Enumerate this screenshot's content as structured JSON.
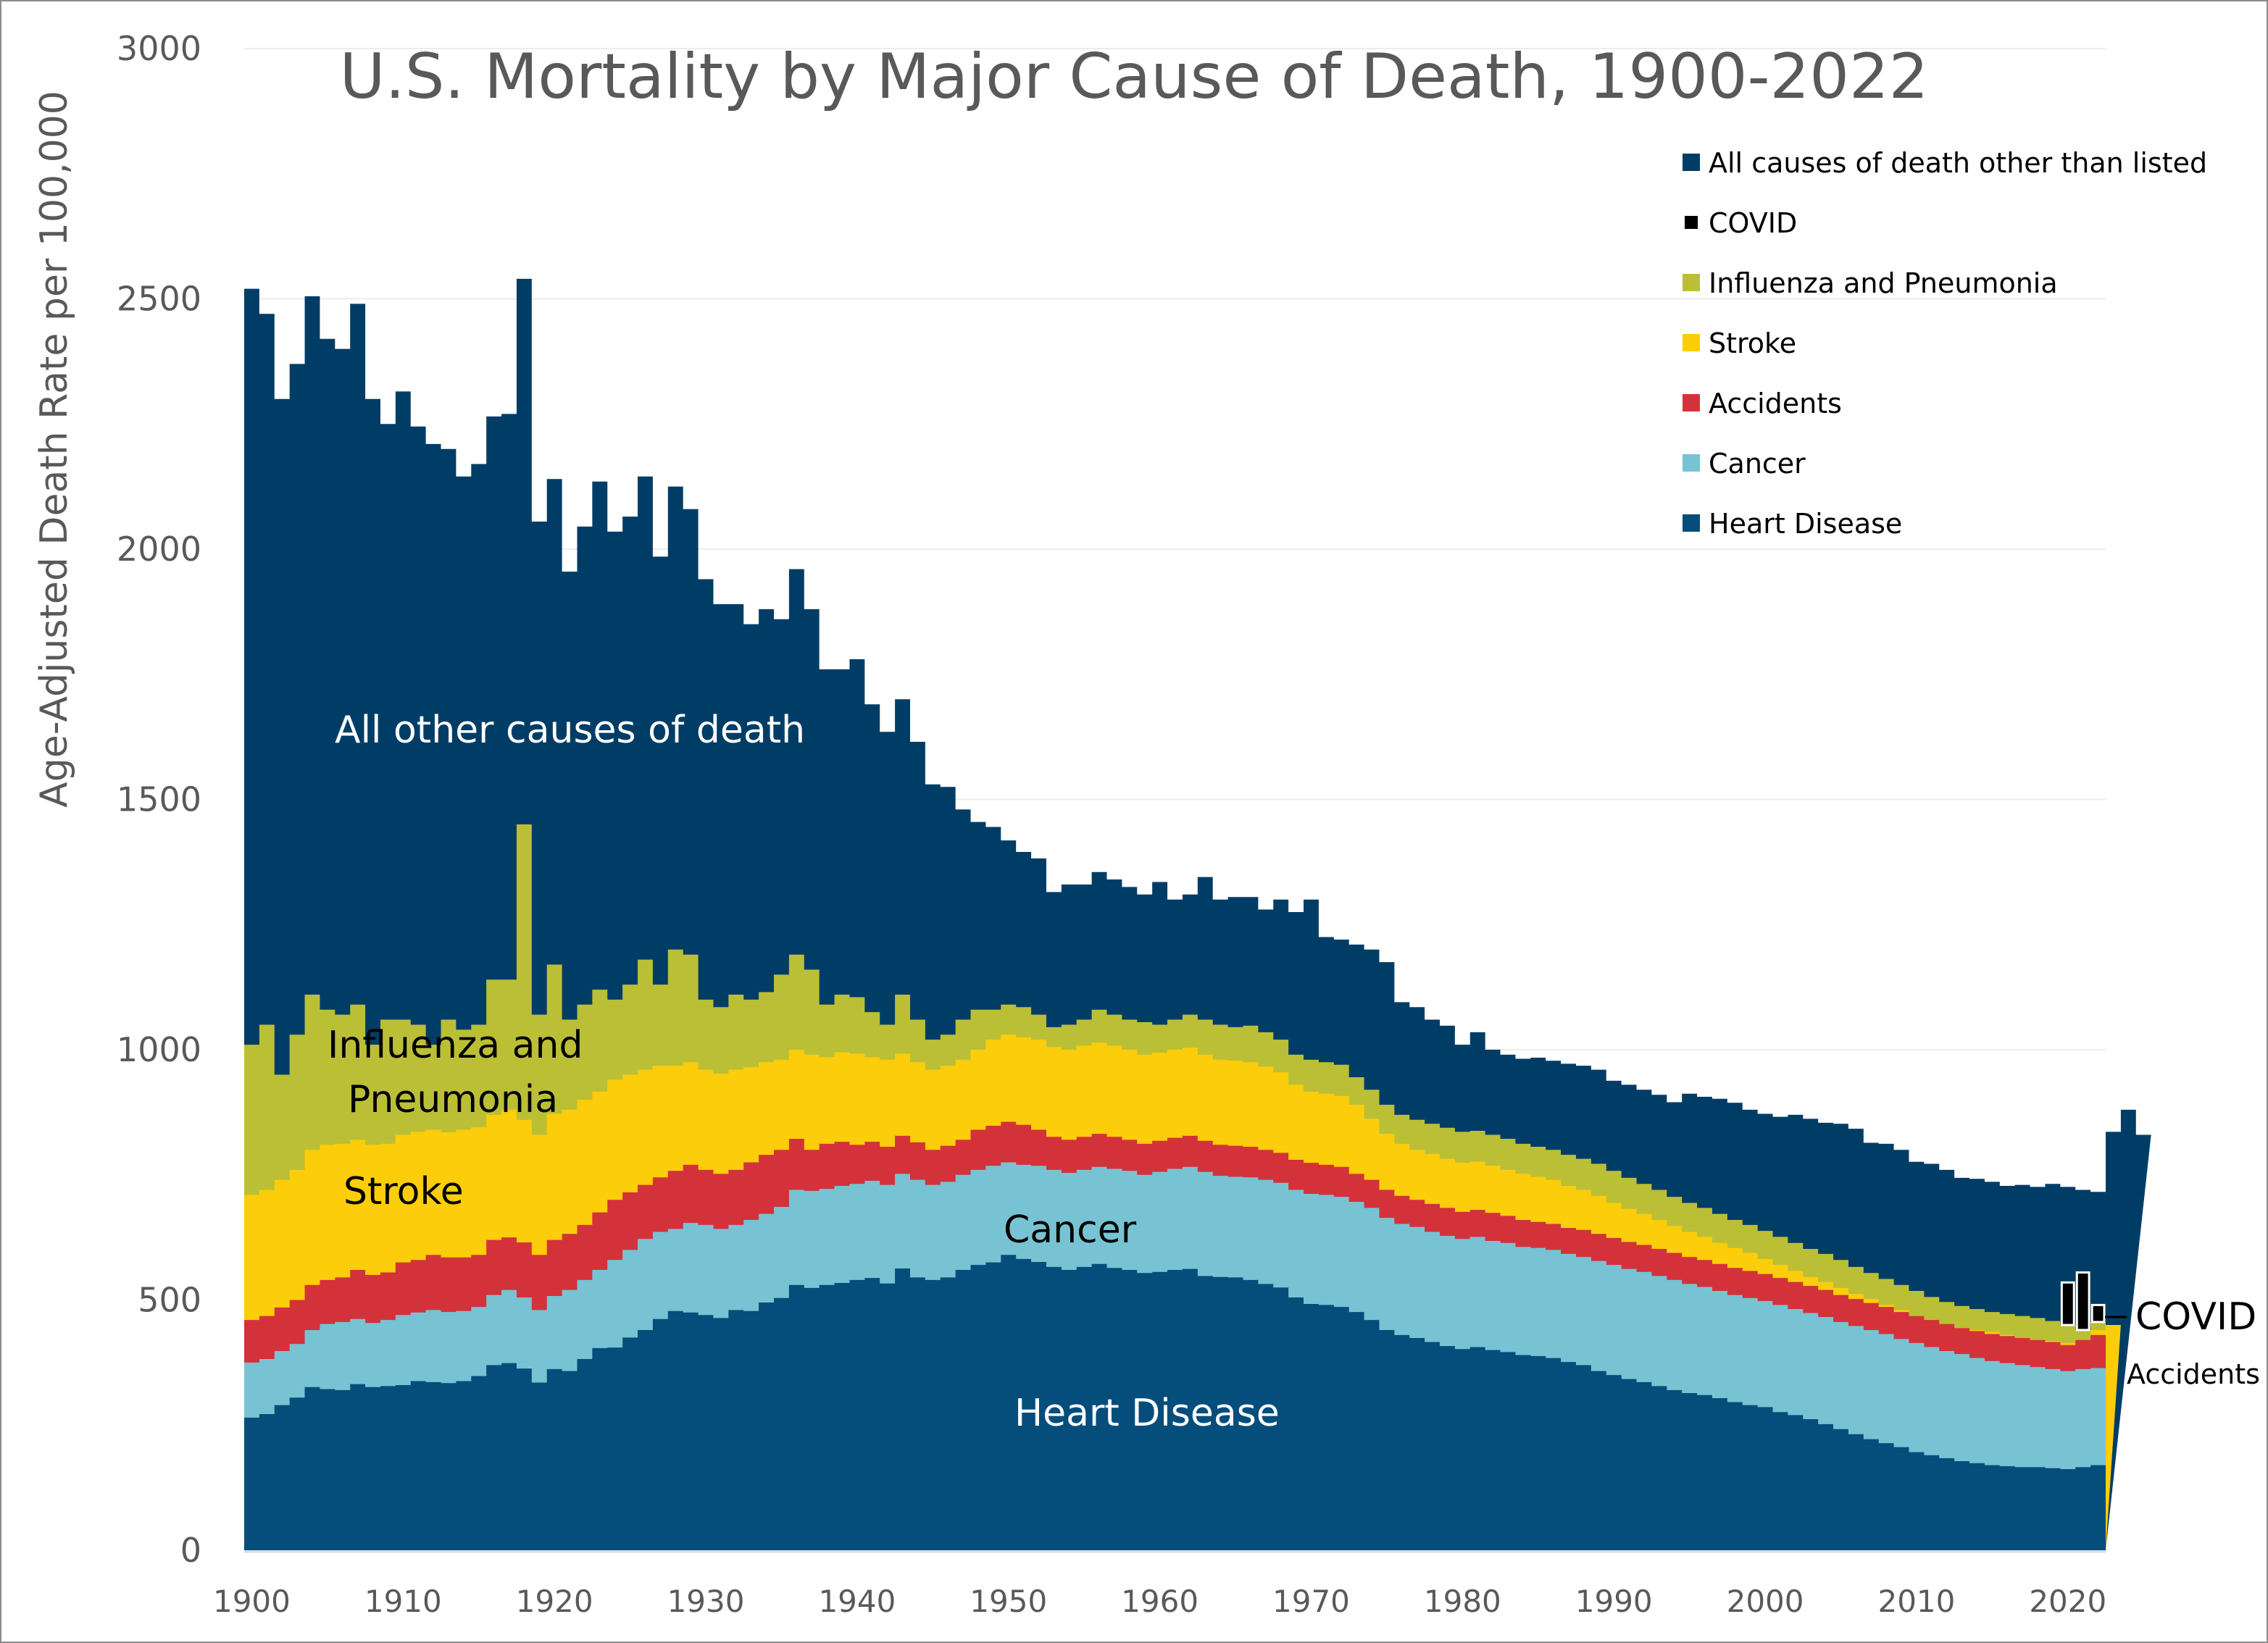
{
  "chart_data": {
    "type": "area",
    "stacked": true,
    "step": true,
    "title": "U.S. Mortality by Major Cause of Death, 1900-2022",
    "xlabel": "",
    "ylabel": "Age-Adjusted Death Rate per 100,000",
    "xlim": [
      1900,
      2022
    ],
    "ylim": [
      0,
      3000
    ],
    "yticks": [
      0,
      500,
      1000,
      1500,
      2000,
      2500,
      3000
    ],
    "xticks": [
      1900,
      1910,
      1920,
      1930,
      1940,
      1950,
      1960,
      1970,
      1980,
      1990,
      2000,
      2010,
      2020
    ],
    "grid": "horizontal",
    "legend_position": "top-right",
    "legend": [
      {
        "name": "All causes of death other than listed",
        "color": "#003d66"
      },
      {
        "name": "COVID",
        "color": "#000000"
      },
      {
        "name": "Influenza and Pneumonia",
        "color": "#bbbf36"
      },
      {
        "name": "Stroke",
        "color": "#fccd0a"
      },
      {
        "name": "Accidents",
        "color": "#d3323a"
      },
      {
        "name": "Cancer",
        "color": "#77c3d3"
      },
      {
        "name": "Heart Disease",
        "color": "#054d7b"
      }
    ],
    "annotations": {
      "other": "All other causes of death",
      "flu": "Influenza and",
      "flu2": "Pneumonia",
      "stroke": "Stroke",
      "cancer": "Cancer",
      "heart": "Heart Disease",
      "covid": "COVID",
      "accidents": "Accidents"
    },
    "years_start": 1900,
    "series_order": [
      "Heart Disease",
      "Cancer",
      "Accidents",
      "Stroke",
      "Influenza and Pneumonia",
      "COVID",
      "All causes of death other than listed"
    ],
    "colors": {
      "Heart Disease": "#054d7b",
      "Cancer": "#77c3d3",
      "Accidents": "#d3323a",
      "Stroke": "#fccd0a",
      "Influenza and Pneumonia": "#bbbf36",
      "COVID": "#000000",
      "All causes of death other than listed": "#003d66"
    },
    "cumulative_tops": {
      "Heart Disease": [
        265,
        272,
        290,
        305,
        326,
        322,
        320,
        332,
        326,
        328,
        330,
        338,
        336,
        334,
        338,
        348,
        370,
        374,
        363,
        335,
        362,
        358,
        382,
        404,
        405,
        425,
        440,
        462,
        478,
        475,
        470,
        464,
        480,
        478,
        495,
        504,
        530,
        524,
        530,
        534,
        540,
        544,
        533,
        563,
        545,
        540,
        545,
        560,
        570,
        575,
        590,
        582,
        576,
        566,
        560,
        566,
        572,
        564,
        560,
        554,
        556,
        560,
        562,
        548,
        546,
        545,
        540,
        532,
        525,
        505,
        492,
        490,
        486,
        476,
        460,
        440,
        430,
        424,
        416,
        408,
        402,
        406,
        400,
        396,
        390,
        388,
        384,
        376,
        370,
        358,
        350,
        342,
        336,
        328,
        320,
        314,
        310,
        304,
        296,
        290,
        286,
        276,
        270,
        262,
        252,
        242,
        232,
        222,
        214,
        206,
        196,
        190,
        184,
        178,
        174,
        170,
        168,
        166,
        166,
        164,
        162,
        166,
        170
      ],
      "Cancer": [
        375,
        382,
        398,
        412,
        440,
        452,
        456,
        462,
        454,
        460,
        470,
        475,
        480,
        476,
        478,
        486,
        510,
        520,
        505,
        480,
        508,
        520,
        540,
        560,
        580,
        600,
        622,
        636,
        642,
        654,
        650,
        642,
        650,
        660,
        672,
        686,
        720,
        718,
        722,
        728,
        732,
        738,
        730,
        752,
        740,
        730,
        736,
        750,
        760,
        768,
        775,
        770,
        768,
        760,
        754,
        760,
        766,
        762,
        758,
        750,
        756,
        762,
        766,
        756,
        748,
        746,
        745,
        740,
        734,
        720,
        712,
        710,
        706,
        696,
        684,
        664,
        652,
        646,
        636,
        628,
        622,
        626,
        618,
        614,
        606,
        604,
        600,
        592,
        586,
        578,
        570,
        562,
        556,
        548,
        540,
        532,
        526,
        518,
        510,
        504,
        498,
        490,
        482,
        474,
        466,
        456,
        448,
        440,
        432,
        422,
        414,
        406,
        398,
        392,
        384,
        378,
        374,
        370,
        366,
        362,
        358,
        362,
        364
      ],
      "Accidents": [
        460,
        468,
        485,
        500,
        530,
        540,
        545,
        560,
        550,
        555,
        575,
        580,
        590,
        585,
        585,
        590,
        620,
        625,
        615,
        590,
        620,
        632,
        650,
        675,
        700,
        715,
        730,
        745,
        758,
        770,
        760,
        752,
        760,
        775,
        790,
        800,
        822,
        800,
        812,
        816,
        810,
        816,
        806,
        828,
        815,
        800,
        808,
        820,
        840,
        848,
        856,
        850,
        840,
        826,
        820,
        826,
        832,
        826,
        820,
        812,
        818,
        824,
        828,
        818,
        810,
        808,
        806,
        800,
        794,
        780,
        774,
        770,
        766,
        752,
        740,
        720,
        708,
        700,
        692,
        684,
        676,
        680,
        674,
        668,
        660,
        656,
        652,
        644,
        640,
        632,
        624,
        616,
        610,
        602,
        594,
        586,
        580,
        572,
        564,
        558,
        552,
        544,
        536,
        528,
        520,
        510,
        502,
        494,
        486,
        476,
        468,
        460,
        452,
        444,
        438,
        432,
        428,
        424,
        420,
        416,
        410,
        420,
        430
      ],
      "Stroke": [
        710,
        720,
        740,
        760,
        800,
        810,
        812,
        820,
        810,
        812,
        830,
        836,
        840,
        835,
        840,
        845,
        870,
        880,
        860,
        830,
        872,
        880,
        900,
        916,
        940,
        950,
        960,
        968,
        968,
        975,
        960,
        952,
        960,
        965,
        975,
        980,
        1000,
        990,
        985,
        995,
        992,
        985,
        980,
        992,
        975,
        960,
        968,
        980,
        1000,
        1020,
        1030,
        1025,
        1020,
        1005,
        1000,
        1008,
        1014,
        1008,
        1000,
        990,
        994,
        1000,
        1004,
        990,
        980,
        978,
        975,
        966,
        955,
        930,
        916,
        912,
        908,
        890,
        862,
        832,
        812,
        800,
        792,
        782,
        774,
        776,
        768,
        760,
        752,
        746,
        740,
        728,
        720,
        708,
        694,
        682,
        672,
        660,
        648,
        636,
        626,
        614,
        604,
        594,
        582,
        570,
        558,
        546,
        536,
        524,
        512,
        502,
        490,
        480,
        468,
        458,
        450,
        444,
        440,
        436,
        430,
        424,
        420,
        418,
        414,
        418,
        440,
        450
      ],
      "Influenza and Pneumonia": [
        1010,
        1050,
        950,
        1030,
        1110,
        1080,
        1070,
        1090,
        1010,
        1060,
        1060,
        1050,
        1010,
        1060,
        1040,
        1050,
        1140,
        1140,
        1450,
        1070,
        1170,
        1060,
        1090,
        1120,
        1100,
        1130,
        1180,
        1130,
        1200,
        1190,
        1100,
        1085,
        1110,
        1100,
        1115,
        1150,
        1190,
        1160,
        1090,
        1110,
        1105,
        1075,
        1050,
        1110,
        1060,
        1020,
        1030,
        1060,
        1080,
        1080,
        1090,
        1085,
        1070,
        1045,
        1050,
        1060,
        1080,
        1070,
        1060,
        1055,
        1050,
        1060,
        1070,
        1060,
        1050,
        1045,
        1048,
        1035,
        1020,
        990,
        980,
        975,
        970,
        945,
        920,
        890,
        870,
        860,
        852,
        844,
        836,
        838,
        830,
        822,
        812,
        806,
        800,
        790,
        782,
        772,
        758,
        744,
        732,
        720,
        706,
        694,
        684,
        672,
        660,
        650,
        638,
        626,
        614,
        602,
        592,
        580,
        566,
        554,
        542,
        530,
        518,
        506,
        496,
        488,
        482,
        476,
        472,
        468,
        464,
        458,
        450,
        440,
        456
      ],
      "COVID": [
        null,
        null,
        null,
        null,
        null,
        null,
        null,
        null,
        null,
        null,
        null,
        null,
        null,
        null,
        null,
        null,
        null,
        null,
        null,
        null,
        null,
        null,
        null,
        null,
        null,
        null,
        null,
        null,
        null,
        null,
        null,
        null,
        null,
        null,
        null,
        null,
        null,
        null,
        null,
        null,
        null,
        null,
        null,
        null,
        null,
        null,
        null,
        null,
        null,
        null,
        null,
        null,
        null,
        null,
        null,
        null,
        null,
        null,
        null,
        null,
        null,
        null,
        null,
        null,
        null,
        null,
        null,
        null,
        null,
        null,
        null,
        null,
        null,
        null,
        null,
        null,
        null,
        null,
        null,
        null,
        null,
        null,
        null,
        null,
        null,
        null,
        null,
        null,
        null,
        null,
        null,
        null,
        null,
        null,
        null,
        null,
        null,
        null,
        null,
        null,
        null,
        null,
        null,
        null,
        null,
        null,
        null,
        null,
        null,
        null,
        null,
        null,
        null,
        null,
        null,
        null,
        null,
        null,
        null,
        null,
        535,
        555,
        490
      ],
      "All causes of death other than listed": [
        2520,
        2470,
        2300,
        2370,
        2505,
        2420,
        2400,
        2490,
        2300,
        2250,
        2315,
        2245,
        2210,
        2200,
        2145,
        2170,
        2265,
        2270,
        2540,
        2055,
        2140,
        1955,
        2045,
        2135,
        2035,
        2065,
        2145,
        1985,
        2125,
        2080,
        1940,
        1890,
        1890,
        1850,
        1880,
        1860,
        1960,
        1880,
        1760,
        1760,
        1780,
        1690,
        1635,
        1700,
        1615,
        1530,
        1525,
        1480,
        1455,
        1445,
        1418,
        1395,
        1382,
        1315,
        1330,
        1330,
        1355,
        1340,
        1325,
        1310,
        1335,
        1300,
        1310,
        1345,
        1300,
        1305,
        1305,
        1280,
        1300,
        1275,
        1300,
        1225,
        1220,
        1210,
        1200,
        1175,
        1095,
        1085,
        1060,
        1048,
        1010,
        1035,
        1000,
        990,
        982,
        984,
        978,
        972,
        968,
        960,
        938,
        930,
        920,
        910,
        895,
        912,
        906,
        902,
        894,
        880,
        872,
        866,
        870,
        862,
        854,
        852,
        842,
        814,
        812,
        800,
        776,
        772,
        760,
        744,
        742,
        736,
        728,
        730,
        726,
        732,
        726,
        720,
        716,
        836,
        880,
        830
      ]
    }
  }
}
